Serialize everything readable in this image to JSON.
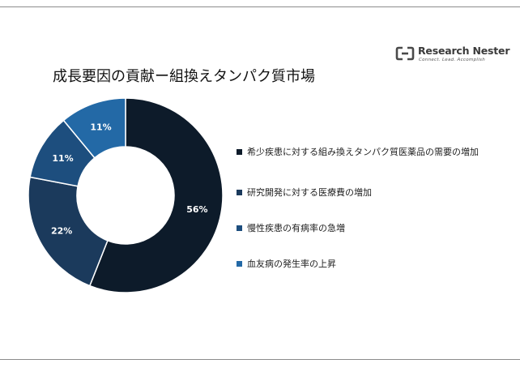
{
  "brand": {
    "name": "Research Nester",
    "tagline": "Connect. Lead. Accomplish"
  },
  "chart_data": {
    "type": "pie",
    "title": "成長要因の貢献ー組換えタンパク質市場",
    "donut": true,
    "legend_position": "right",
    "categories": [
      "希少疾患に対する組み換えタンパク質医薬品の需要の増加",
      "研究開発に対する医療費の増加",
      "慢性疾患の有病率の急増",
      "血友病の発生率の上昇"
    ],
    "values": [
      56,
      22,
      11,
      11
    ],
    "value_labels": [
      "56%",
      "22%",
      "11%",
      "11%"
    ],
    "colors": [
      "#0d1b2a",
      "#1b3a5c",
      "#1d4e7e",
      "#2369a6"
    ]
  }
}
